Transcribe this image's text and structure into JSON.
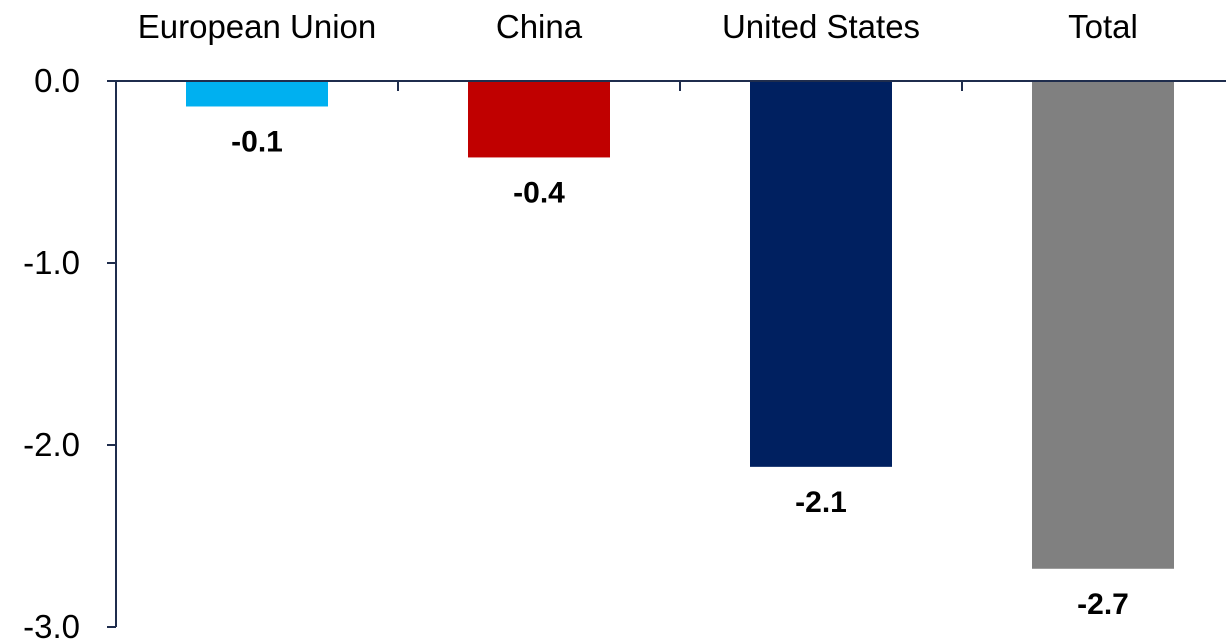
{
  "chart_data": {
    "type": "bar",
    "categories": [
      "European Union",
      "China",
      "United States",
      "Total"
    ],
    "values": [
      -0.14,
      -0.42,
      -2.12,
      -2.68
    ],
    "data_labels": [
      "-0.1",
      "-0.4",
      "-2.1",
      "-2.7"
    ],
    "colors": [
      "#00b0f0",
      "#c00000",
      "#002060",
      "#808080"
    ],
    "ylim": [
      -3.0,
      0.0
    ],
    "yticks": [
      0.0,
      -1.0,
      -2.0,
      -3.0
    ],
    "ytick_labels": [
      "0.0",
      "-1.0",
      "-2.0",
      "-3.0"
    ],
    "category_axis_position": "top",
    "grid": false,
    "legend": "none",
    "title": "",
    "xlabel": "",
    "ylabel": ""
  }
}
